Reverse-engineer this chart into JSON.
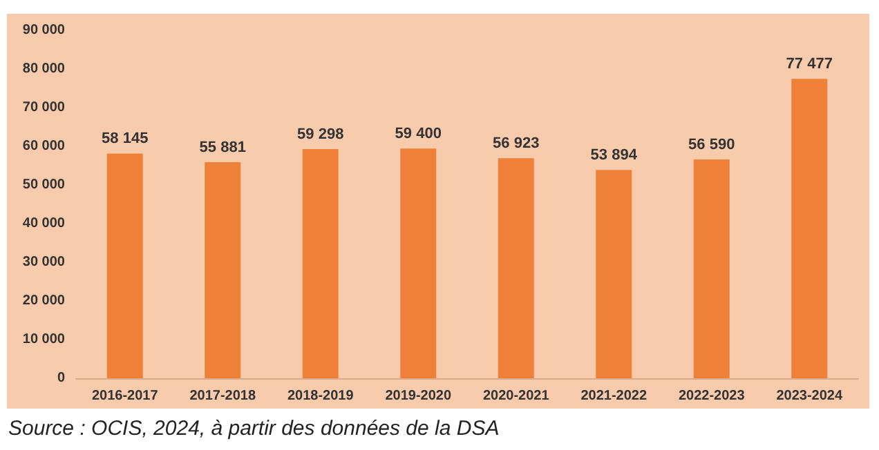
{
  "chart_data": {
    "type": "bar",
    "categories": [
      "2016-2017",
      "2017-2018",
      "2018-2019",
      "2019-2020",
      "2020-2021",
      "2021-2022",
      "2022-2023",
      "2023-2024"
    ],
    "values": [
      58145,
      55881,
      59298,
      59400,
      56923,
      53894,
      56590,
      77477
    ],
    "value_labels": [
      "58 145",
      "55 881",
      "59 298",
      "59 400",
      "56 923",
      "53 894",
      "56 590",
      "77 477"
    ],
    "color": "#ee8137",
    "ylim": [
      0,
      90000
    ],
    "yticks": [
      {
        "value": 0,
        "label": "0"
      },
      {
        "value": 10000,
        "label": "10 000"
      },
      {
        "value": 20000,
        "label": "20 000"
      },
      {
        "value": 30000,
        "label": "30 000"
      },
      {
        "value": 40000,
        "label": "40 000"
      },
      {
        "value": 50000,
        "label": "50 000"
      },
      {
        "value": 60000,
        "label": "60 000"
      },
      {
        "value": 70000,
        "label": "70 000"
      },
      {
        "value": 80000,
        "label": "80 000"
      },
      {
        "value": 90000,
        "label": "90 000"
      }
    ],
    "grid": false,
    "annotations": [
      "Source : OCIS, 2024, à partir des données de la DSA"
    ]
  }
}
